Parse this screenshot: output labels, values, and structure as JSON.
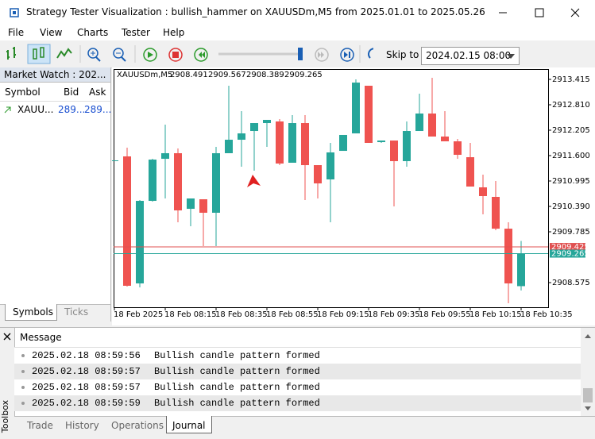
{
  "window": {
    "title": "Strategy Tester Visualization : bullish_hammer on XAUUSDm,M5 from 2025.01.01 to 2025.05.26"
  },
  "menu": [
    "File",
    "View",
    "Charts",
    "Tester",
    "Help"
  ],
  "toolbar": {
    "skip_to_label": "Skip to",
    "skip_to_value": "2024.02.15 08:00"
  },
  "market_watch": {
    "title": "Market Watch : 202...",
    "columns": [
      "Symbol",
      "Bid",
      "Ask"
    ],
    "rows": [
      [
        "XAUU...",
        "289...",
        "289..."
      ]
    ],
    "tabs": [
      "Symbols",
      "Ticks"
    ]
  },
  "chart_data": {
    "type": "candlestick",
    "info_symbol": "XAUUSDm,M5",
    "info_values": [
      2908.491,
      2909.567,
      2908.389,
      2909.265
    ],
    "categories": [
      "18 Feb 2025",
      null,
      null,
      null,
      "18 Feb 08:15",
      null,
      null,
      null,
      "18 Feb 08:35",
      null,
      null,
      null,
      "18 Feb 08:55",
      null,
      null,
      null,
      "18 Feb 09:15",
      null,
      null,
      null,
      "18 Feb 09:35",
      null,
      null,
      null,
      "18 Feb 09:55",
      null,
      null,
      null,
      "18 Feb 10:15",
      null,
      null,
      null,
      "18 Feb 10:35"
    ],
    "open": [
      2911.468,
      2911.581,
      2908.556,
      2910.522,
      2911.524,
      2911.657,
      2910.333,
      2910.56,
      2910.239,
      2911.657,
      2911.978,
      2912.186,
      2912.375,
      2912.413,
      2911.43,
      2912.375,
      2911.373,
      2911.033,
      2911.713,
      2912.129,
      2913.264,
      2911.921,
      2911.959,
      2911.468,
      2912.186,
      2912.602,
      2912.054,
      2911.94,
      2911.562,
      2910.844,
      2910.617,
      2909.86,
      2908.491
    ],
    "high": [
      2911.487,
      2911.789,
      2910.541,
      2911.524,
      2912.337,
      2911.77,
      2910.579,
      2910.56,
      2911.808,
      2913.264,
      2912.659,
      2912.375,
      2912.451,
      2912.47,
      2912.564,
      2912.564,
      2911.373,
      2911.903,
      2912.092,
      2913.415,
      2913.264,
      2911.959,
      2911.959,
      2912.413,
      2913.075,
      2913.453,
      2912.659,
      2911.997,
      2911.903,
      2911.146,
      2910.995,
      2910.012,
      2909.567
    ],
    "low": [
      2911.468,
      2908.481,
      2908.462,
      2910.503,
      2910.579,
      2910.012,
      2909.917,
      2909.445,
      2909.445,
      2911.657,
      2911.335,
      2911.241,
      2911.808,
      2911.373,
      2911.43,
      2910.541,
      2910.579,
      2910.012,
      2911.713,
      2912.129,
      2911.903,
      2911.903,
      2910.39,
      2911.335,
      2912.186,
      2912.054,
      2911.94,
      2911.524,
      2910.863,
      2910.201,
      2909.823,
      2908.084,
      2908.389
    ],
    "close": [
      2911.487,
      2908.5,
      2910.522,
      2911.505,
      2911.657,
      2910.295,
      2910.579,
      2910.239,
      2911.657,
      2911.978,
      2912.129,
      2912.375,
      2912.451,
      2911.411,
      2912.375,
      2911.373,
      2910.938,
      2911.676,
      2912.092,
      2913.339,
      2911.903,
      2911.959,
      2911.468,
      2912.186,
      2912.602,
      2912.054,
      2911.94,
      2911.619,
      2910.863,
      2910.636,
      2909.86,
      2908.556,
      2909.265
    ],
    "up_color": "#26a69a",
    "down_color": "#ef5350",
    "ylim": [
      2907.989,
      2913.661
    ],
    "yticks": [
      {
        "value": 2913.415,
        "label": "2913.415"
      },
      {
        "value": 2912.81,
        "label": "2912.810"
      },
      {
        "value": 2912.205,
        "label": "2912.205"
      },
      {
        "value": 2911.6,
        "label": "2911.600"
      },
      {
        "value": 2910.995,
        "label": "2910.995"
      },
      {
        "value": 2910.39,
        "label": "2910.390"
      },
      {
        "value": 2909.785,
        "label": "2909.785"
      },
      {
        "value": 2908.575,
        "label": "2908.575"
      }
    ],
    "price_lines": [
      {
        "value": 2909.425,
        "color": "#e05050"
      },
      {
        "value": 2909.265,
        "color": "#26a69a"
      }
    ]
  },
  "toolbox": {
    "side_label": "Toolbox",
    "header": "Message",
    "rows": [
      {
        "time": "2025.02.18 08:59:56",
        "text": "Bullish candle pattern formed"
      },
      {
        "time": "2025.02.18 08:59:57",
        "text": "Bullish candle pattern formed"
      },
      {
        "time": "2025.02.18 08:59:57",
        "text": "Bullish candle pattern formed"
      },
      {
        "time": "2025.02.18 08:59:59",
        "text": "Bullish candle pattern formed"
      }
    ],
    "tabs": [
      "Trade",
      "History",
      "Operations",
      "Journal"
    ]
  }
}
